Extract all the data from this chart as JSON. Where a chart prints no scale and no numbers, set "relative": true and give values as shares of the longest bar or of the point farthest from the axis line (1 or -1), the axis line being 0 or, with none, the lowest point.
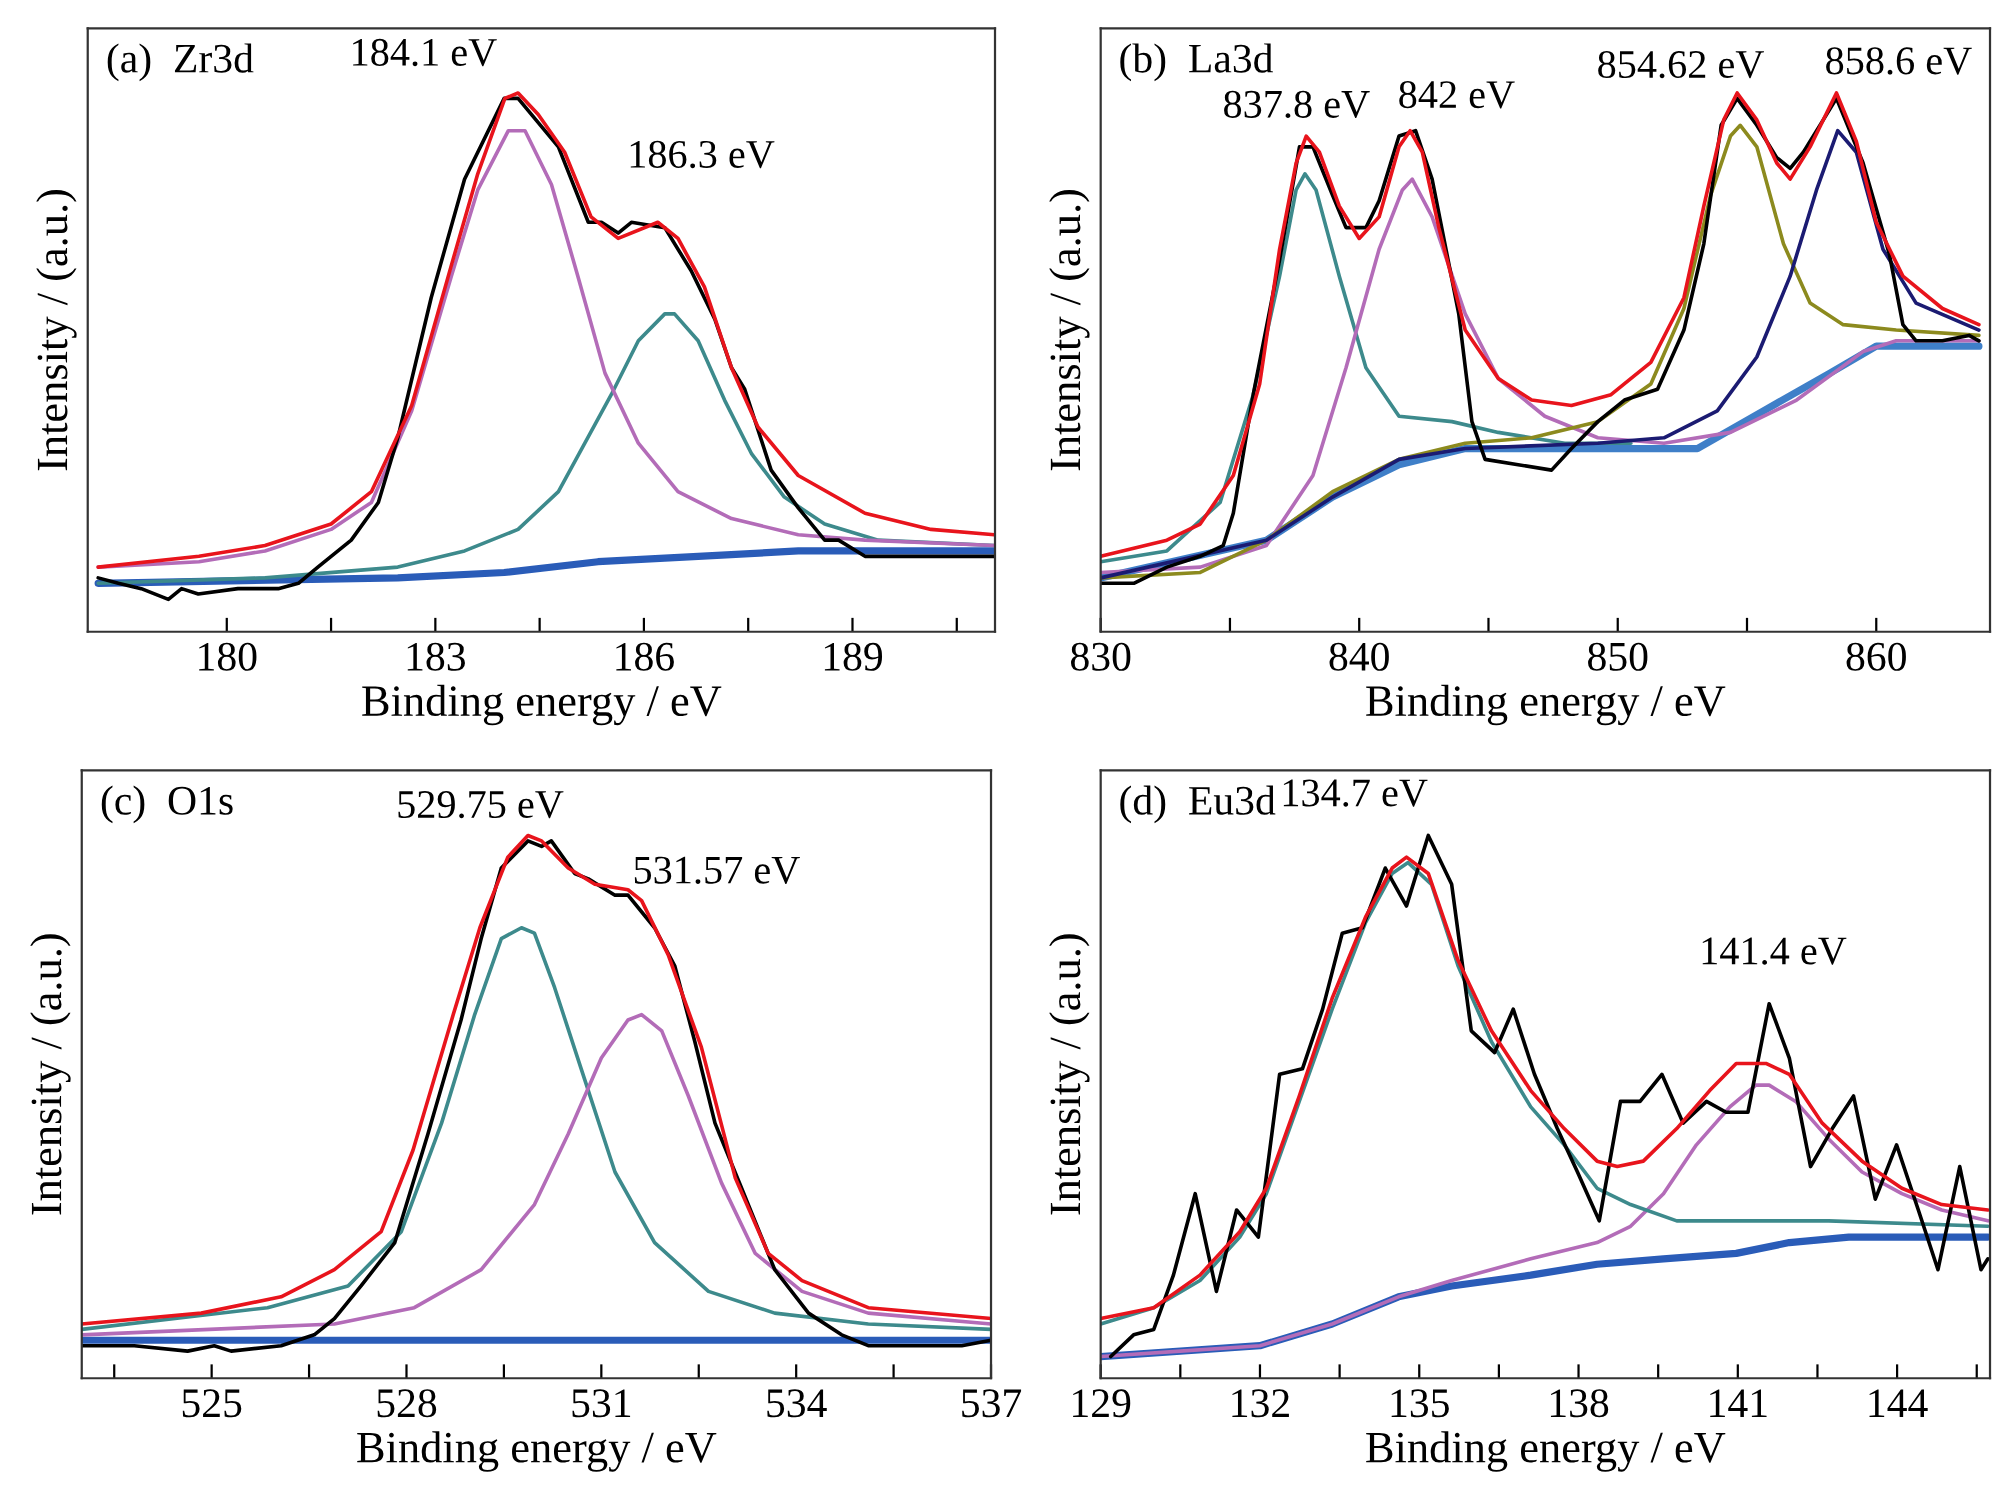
{
  "chart_data": [
    {
      "type": "line",
      "title": "(a)  Zr3d",
      "xlabel": "Binding energy / eV",
      "ylabel": "Intensity / (a.u.)",
      "relative": true,
      "tick_labels": "x",
      "xlim": [
        178,
        191.05
      ],
      "xticks": [
        180,
        {
          "value": 181.5,
          "label": null
        },
        183,
        {
          "value": 184.5,
          "label": null
        },
        186,
        {
          "value": 187.5,
          "label": null
        },
        189,
        {
          "value": 190.5,
          "label": null
        }
      ],
      "annotations": [
        "184.1 eV",
        "186.3 eV"
      ],
      "series": [
        {
          "color": "#2a5cb8",
          "x": [
            178.15,
            182.46,
            183.99,
            185.34,
            186.78,
            188.22,
            191.04
          ],
          "values": [
            0.09,
            0.1,
            0.11,
            0.13,
            0.14,
            0.15,
            0.15
          ]
        },
        {
          "color": "#3d8a8c",
          "x": [
            178.15,
            180.55,
            182.46,
            183.42,
            184.19,
            184.77,
            185.15,
            185.53,
            185.92,
            186.3,
            186.44,
            186.78,
            187.16,
            187.55,
            188.02,
            188.6,
            189.37,
            191.04
          ],
          "values": [
            0.09,
            0.1,
            0.12,
            0.15,
            0.19,
            0.26,
            0.35,
            0.44,
            0.54,
            0.59,
            0.59,
            0.54,
            0.43,
            0.33,
            0.25,
            0.2,
            0.17,
            0.16
          ]
        },
        {
          "color": "#b36cb8",
          "x": [
            178.15,
            179.6,
            180.55,
            181.5,
            182.08,
            182.66,
            183.23,
            183.61,
            184.05,
            184.29,
            184.67,
            185.05,
            185.44,
            185.92,
            186.49,
            187.26,
            188.22,
            189.18,
            191.04
          ],
          "values": [
            0.12,
            0.13,
            0.15,
            0.19,
            0.24,
            0.41,
            0.66,
            0.82,
            0.93,
            0.93,
            0.83,
            0.66,
            0.48,
            0.35,
            0.26,
            0.21,
            0.18,
            0.17,
            0.16
          ]
        },
        {
          "color": "#000000",
          "x": [
            178.15,
            178.44,
            178.77,
            179.16,
            179.35,
            179.59,
            180.16,
            180.74,
            181.03,
            181.31,
            181.79,
            182.18,
            182.46,
            182.94,
            183.42,
            183.99,
            184.19,
            184.77,
            185.2,
            185.39,
            185.63,
            185.82,
            186.3,
            186.68,
            187.02,
            187.26,
            187.45,
            187.83,
            188.22,
            188.6,
            188.8,
            189.18,
            189.75,
            190.13,
            191.04
          ],
          "values": [
            0.1,
            0.09,
            0.08,
            0.06,
            0.08,
            0.07,
            0.08,
            0.08,
            0.09,
            0.12,
            0.17,
            0.24,
            0.36,
            0.62,
            0.84,
            0.99,
            0.99,
            0.9,
            0.76,
            0.76,
            0.74,
            0.76,
            0.75,
            0.67,
            0.58,
            0.49,
            0.45,
            0.3,
            0.23,
            0.17,
            0.17,
            0.14,
            0.14,
            0.14,
            0.14
          ]
        },
        {
          "color": "#e8141c",
          "x": [
            178.15,
            179.6,
            180.55,
            181.5,
            182.08,
            182.66,
            183.23,
            183.61,
            184.0,
            184.19,
            184.48,
            184.86,
            185.24,
            185.63,
            186.2,
            186.49,
            186.87,
            187.26,
            187.64,
            188.22,
            189.18,
            190.13,
            191.04
          ],
          "values": [
            0.12,
            0.14,
            0.16,
            0.2,
            0.26,
            0.42,
            0.68,
            0.85,
            0.99,
            1.0,
            0.96,
            0.89,
            0.77,
            0.73,
            0.76,
            0.73,
            0.64,
            0.49,
            0.38,
            0.29,
            0.22,
            0.19,
            0.18
          ]
        }
      ]
    },
    {
      "type": "line",
      "title": "(b)  La3d",
      "xlabel": "Binding energy / eV",
      "ylabel": "Intensity / (a.u.)",
      "relative": true,
      "tick_labels": "x",
      "xlim": [
        830,
        864.4
      ],
      "xticks": [
        830,
        {
          "value": 835,
          "label": null
        },
        840,
        {
          "value": 845,
          "label": null
        },
        850,
        {
          "value": 855,
          "label": null
        },
        860
      ],
      "annotations": [
        "837.8 eV",
        "842 eV",
        "854.62 eV",
        "858.6 eV"
      ],
      "series": [
        {
          "color": "#3f7fc8",
          "x": [
            830,
            836.41,
            838.97,
            841.54,
            844.1,
            853.08,
            855.64,
            858.21,
            860.0,
            863.97
          ],
          "values": [
            0.1,
            0.17,
            0.25,
            0.31,
            0.34,
            0.34,
            0.41,
            0.48,
            0.53,
            0.53
          ]
        },
        {
          "color": "#3d8a8c",
          "x": [
            830,
            832.56,
            834.62,
            835.9,
            836.92,
            837.56,
            837.9,
            838.33,
            839.23,
            840.26,
            841.54,
            843.59,
            845.38,
            847.95,
            850.51
          ],
          "values": [
            0.13,
            0.15,
            0.24,
            0.44,
            0.66,
            0.82,
            0.85,
            0.82,
            0.66,
            0.49,
            0.4,
            0.39,
            0.37,
            0.35,
            0.35
          ]
        },
        {
          "color": "#b36cb8",
          "x": [
            830,
            833.85,
            836.41,
            838.21,
            839.49,
            840.77,
            841.67,
            842.05,
            842.82,
            844.1,
            845.38,
            847.18,
            849.23,
            851.79,
            854.36,
            856.92,
            859.49,
            860.77,
            863.97
          ],
          "values": [
            0.11,
            0.12,
            0.16,
            0.29,
            0.49,
            0.71,
            0.82,
            0.84,
            0.77,
            0.59,
            0.47,
            0.4,
            0.36,
            0.35,
            0.37,
            0.43,
            0.52,
            0.54,
            0.54
          ]
        },
        {
          "color": "#8c8a1e",
          "x": [
            830,
            833.85,
            836.41,
            838.97,
            841.54,
            844.1,
            846.67,
            849.23,
            851.28,
            852.56,
            853.59,
            854.36,
            854.74,
            855.38,
            856.41,
            857.44,
            858.72,
            860.77,
            863.97
          ],
          "values": [
            0.1,
            0.11,
            0.17,
            0.26,
            0.32,
            0.35,
            0.36,
            0.39,
            0.46,
            0.6,
            0.81,
            0.92,
            0.94,
            0.9,
            0.72,
            0.61,
            0.57,
            0.56,
            0.55
          ]
        },
        {
          "color": "#1b1b72",
          "x": [
            830,
            836.41,
            838.97,
            841.54,
            844.1,
            849.23,
            851.79,
            853.85,
            855.38,
            856.67,
            857.69,
            858.51,
            859.23,
            860.26,
            861.54,
            863.97
          ],
          "values": [
            0.1,
            0.17,
            0.25,
            0.32,
            0.34,
            0.35,
            0.36,
            0.41,
            0.51,
            0.66,
            0.82,
            0.93,
            0.89,
            0.71,
            0.61,
            0.56
          ]
        },
        {
          "color": "#000000",
          "x": [
            830,
            831.28,
            832.56,
            833.85,
            834.74,
            835.13,
            835.9,
            836.92,
            837.69,
            838.21,
            838.97,
            839.49,
            840.26,
            840.77,
            841.54,
            842.18,
            842.82,
            843.85,
            844.36,
            844.87,
            846.15,
            847.44,
            848.21,
            849.23,
            850.26,
            851.54,
            852.56,
            853.33,
            854.0,
            854.62,
            855.38,
            856.15,
            856.67,
            857.18,
            857.95,
            858.46,
            859.49,
            860.51,
            861.03,
            861.54,
            862.56,
            863.59,
            863.97
          ],
          "values": [
            0.09,
            0.09,
            0.12,
            0.14,
            0.16,
            0.22,
            0.44,
            0.69,
            0.9,
            0.9,
            0.81,
            0.75,
            0.75,
            0.8,
            0.92,
            0.93,
            0.84,
            0.59,
            0.39,
            0.32,
            0.31,
            0.3,
            0.34,
            0.39,
            0.43,
            0.45,
            0.56,
            0.72,
            0.94,
            0.99,
            0.94,
            0.88,
            0.86,
            0.89,
            0.95,
            0.99,
            0.87,
            0.7,
            0.57,
            0.54,
            0.54,
            0.55,
            0.54
          ]
        },
        {
          "color": "#e8141c",
          "x": [
            830,
            832.56,
            833.85,
            835.13,
            836.15,
            836.92,
            837.56,
            837.95,
            838.46,
            839.23,
            840.0,
            840.77,
            841.54,
            841.97,
            842.44,
            843.08,
            844.1,
            845.38,
            846.67,
            848.21,
            849.74,
            851.28,
            852.56,
            853.33,
            854.1,
            854.62,
            855.38,
            856.15,
            856.67,
            857.44,
            858.46,
            859.23,
            860.0,
            861.03,
            862.56,
            863.97
          ],
          "values": [
            0.14,
            0.17,
            0.2,
            0.29,
            0.46,
            0.71,
            0.87,
            0.92,
            0.89,
            0.79,
            0.73,
            0.77,
            0.9,
            0.93,
            0.89,
            0.75,
            0.56,
            0.47,
            0.43,
            0.42,
            0.44,
            0.5,
            0.62,
            0.79,
            0.95,
            1.0,
            0.95,
            0.87,
            0.84,
            0.9,
            1.0,
            0.91,
            0.76,
            0.66,
            0.6,
            0.57
          ]
        }
      ]
    },
    {
      "type": "line",
      "title": "(c)  O1s",
      "xlabel": "Binding energy / eV",
      "ylabel": "Intensity / (a.u.)",
      "relative": true,
      "tick_labels": "x",
      "xlim": [
        523,
        537
      ],
      "xticks": [
        {
          "value": 523.5,
          "label": null
        },
        525,
        {
          "value": 526.5,
          "label": null
        },
        528,
        {
          "value": 529.5,
          "label": null
        },
        531,
        {
          "value": 532.5,
          "label": null
        },
        534,
        {
          "value": 535.5,
          "label": null
        },
        537
      ],
      "annotations": [
        "529.75 eV",
        "531.57 eV"
      ],
      "series": [
        {
          "color": "#2a5cb8",
          "x": [
            523.0,
            537.0
          ],
          "values": [
            0.07,
            0.07
          ]
        },
        {
          "color": "#3d8a8c",
          "x": [
            523.0,
            525.86,
            527.1,
            527.92,
            528.54,
            529.05,
            529.46,
            529.77,
            529.97,
            530.28,
            530.69,
            531.21,
            531.82,
            532.65,
            533.67,
            535.11,
            537.0
          ],
          "values": [
            0.09,
            0.13,
            0.17,
            0.27,
            0.47,
            0.67,
            0.81,
            0.83,
            0.82,
            0.72,
            0.57,
            0.38,
            0.25,
            0.16,
            0.12,
            0.1,
            0.09
          ]
        },
        {
          "color": "#b36cb8",
          "x": [
            523.0,
            526.89,
            528.12,
            529.15,
            529.97,
            530.49,
            531.0,
            531.41,
            531.62,
            531.93,
            532.34,
            532.85,
            533.37,
            534.09,
            535.11,
            537.0
          ],
          "values": [
            0.08,
            0.1,
            0.13,
            0.2,
            0.32,
            0.45,
            0.59,
            0.66,
            0.67,
            0.64,
            0.52,
            0.36,
            0.23,
            0.16,
            0.12,
            0.1
          ]
        },
        {
          "color": "#000000",
          "x": [
            523.0,
            523.81,
            524.63,
            525.04,
            525.3,
            526.07,
            526.58,
            526.89,
            527.3,
            527.82,
            528.33,
            528.84,
            529.15,
            529.46,
            529.87,
            530.08,
            530.23,
            530.59,
            530.8,
            531.21,
            531.41,
            531.82,
            532.13,
            532.44,
            532.75,
            533.16,
            533.67,
            534.19,
            534.7,
            535.11,
            535.63,
            536.55,
            537.0
          ],
          "values": [
            0.06,
            0.06,
            0.05,
            0.06,
            0.05,
            0.06,
            0.08,
            0.11,
            0.17,
            0.25,
            0.45,
            0.66,
            0.81,
            0.94,
            0.99,
            0.98,
            0.99,
            0.93,
            0.92,
            0.89,
            0.89,
            0.83,
            0.76,
            0.62,
            0.47,
            0.35,
            0.2,
            0.12,
            0.08,
            0.06,
            0.06,
            0.06,
            0.07
          ]
        },
        {
          "color": "#e8141c",
          "x": [
            523.0,
            524.84,
            526.07,
            526.89,
            527.61,
            528.1,
            528.72,
            529.13,
            529.56,
            529.87,
            530.08,
            530.49,
            530.9,
            531.41,
            531.62,
            532.03,
            532.54,
            533.06,
            533.57,
            534.09,
            535.11,
            537.0
          ],
          "values": [
            0.1,
            0.12,
            0.15,
            0.2,
            0.27,
            0.42,
            0.67,
            0.83,
            0.96,
            1.0,
            0.99,
            0.94,
            0.91,
            0.9,
            0.88,
            0.78,
            0.61,
            0.37,
            0.23,
            0.18,
            0.13,
            0.11
          ]
        }
      ]
    },
    {
      "type": "line",
      "title": "(d)  Eu3d",
      "xlabel": "Binding energy / eV",
      "ylabel": "Intensity / (a.u.)",
      "relative": true,
      "tick_labels": "x",
      "xlim": [
        129,
        145.75
      ],
      "xticks": [
        129,
        {
          "value": 130.5,
          "label": null
        },
        132,
        {
          "value": 133.5,
          "label": null
        },
        135,
        {
          "value": 136.5,
          "label": null
        },
        138,
        {
          "value": 139.5,
          "label": null
        },
        141,
        {
          "value": 142.5,
          "label": null
        },
        144,
        {
          "value": 145.5,
          "label": null
        }
      ],
      "annotations": [
        "134.7 eV",
        "141.4 eV"
      ],
      "series": [
        {
          "color": "#2a5cb8",
          "x": [
            129.0,
            132.0,
            133.36,
            134.61,
            135.61,
            137.1,
            138.35,
            139.6,
            140.97,
            141.97,
            143.09,
            145.71
          ],
          "values": [
            0.04,
            0.06,
            0.1,
            0.15,
            0.17,
            0.19,
            0.21,
            0.22,
            0.23,
            0.25,
            0.26,
            0.26
          ]
        },
        {
          "color": "#b36cb8",
          "x": [
            129.0,
            130.5,
            132.0,
            133.36,
            134.61,
            135.61,
            137.1,
            138.35,
            138.98,
            139.6,
            140.22,
            140.85,
            141.34,
            141.59,
            142.09,
            142.72,
            143.34,
            144.09,
            144.84,
            145.71
          ],
          "values": [
            0.04,
            0.05,
            0.06,
            0.1,
            0.15,
            0.18,
            0.22,
            0.25,
            0.28,
            0.34,
            0.43,
            0.5,
            0.54,
            0.54,
            0.51,
            0.44,
            0.38,
            0.34,
            0.31,
            0.29
          ]
        },
        {
          "color": "#3d8a8c",
          "x": [
            129.0,
            130.0,
            130.87,
            131.62,
            132.12,
            132.74,
            133.36,
            133.99,
            134.49,
            134.79,
            135.23,
            135.73,
            136.36,
            137.1,
            137.73,
            138.35,
            138.98,
            139.85,
            140.97,
            142.71,
            145.71
          ],
          "values": [
            0.1,
            0.13,
            0.18,
            0.26,
            0.34,
            0.51,
            0.68,
            0.84,
            0.93,
            0.95,
            0.91,
            0.76,
            0.62,
            0.5,
            0.43,
            0.35,
            0.32,
            0.29,
            0.29,
            0.29,
            0.28
          ]
        },
        {
          "color": "#000000",
          "x": [
            129.19,
            129.62,
            130.0,
            130.37,
            130.78,
            131.18,
            131.56,
            131.97,
            132.37,
            132.8,
            133.18,
            133.55,
            133.93,
            134.36,
            134.76,
            135.17,
            135.61,
            135.98,
            136.42,
            136.77,
            137.17,
            137.6,
            137.98,
            138.39,
            138.79,
            139.16,
            139.57,
            139.97,
            140.41,
            140.78,
            141.19,
            141.59,
            141.97,
            142.37,
            142.78,
            143.18,
            143.59,
            143.99,
            144.4,
            144.77,
            145.18,
            145.58,
            145.71
          ],
          "values": [
            0.04,
            0.08,
            0.09,
            0.19,
            0.34,
            0.16,
            0.31,
            0.26,
            0.56,
            0.57,
            0.68,
            0.82,
            0.83,
            0.94,
            0.87,
            1.0,
            0.91,
            0.64,
            0.6,
            0.68,
            0.56,
            0.46,
            0.38,
            0.29,
            0.51,
            0.51,
            0.56,
            0.47,
            0.51,
            0.49,
            0.49,
            0.69,
            0.59,
            0.39,
            0.46,
            0.52,
            0.33,
            0.43,
            0.31,
            0.2,
            0.39,
            0.2,
            0.22
          ]
        },
        {
          "color": "#e8141c",
          "x": [
            129.0,
            130.0,
            130.87,
            131.62,
            132.12,
            132.74,
            133.36,
            133.99,
            134.49,
            134.76,
            135.17,
            135.73,
            136.36,
            137.1,
            137.73,
            138.35,
            138.73,
            139.22,
            139.85,
            140.47,
            140.97,
            141.53,
            141.97,
            142.59,
            143.34,
            144.09,
            144.84,
            145.71
          ],
          "values": [
            0.11,
            0.13,
            0.19,
            0.27,
            0.35,
            0.52,
            0.7,
            0.85,
            0.94,
            0.96,
            0.93,
            0.77,
            0.64,
            0.53,
            0.46,
            0.4,
            0.39,
            0.4,
            0.46,
            0.53,
            0.58,
            0.58,
            0.56,
            0.47,
            0.4,
            0.35,
            0.32,
            0.31
          ]
        }
      ]
    }
  ]
}
